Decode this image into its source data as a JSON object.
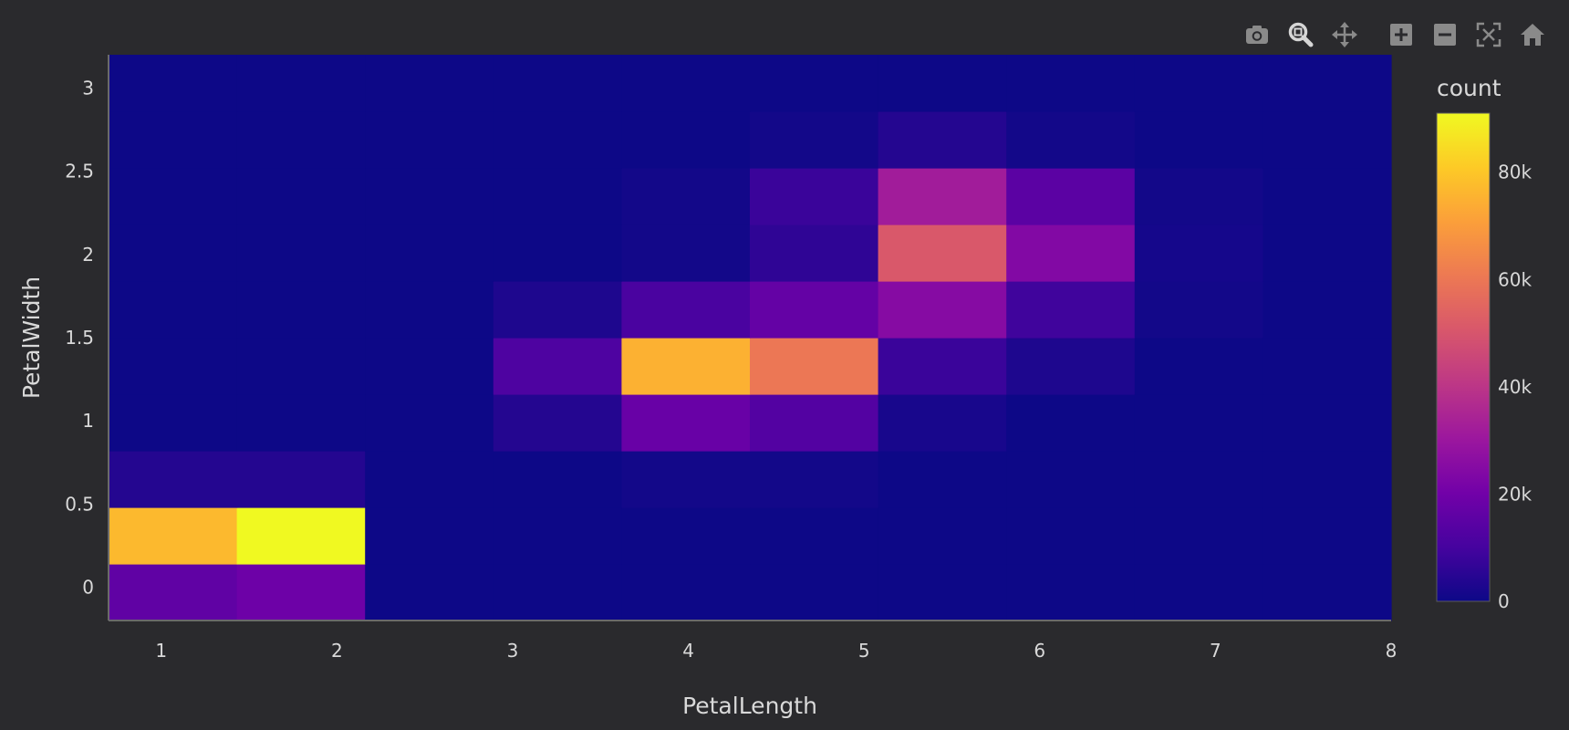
{
  "toolbar": {
    "icons": [
      "camera-icon",
      "zoom-icon",
      "pan-icon",
      "zoom-in-icon",
      "zoom-out-icon",
      "autoscale-icon",
      "home-icon"
    ],
    "active": "zoom-icon"
  },
  "colors": {
    "background": "#2a2a2d",
    "text": "#d9d9d9",
    "colorscale": [
      "#0d0887",
      "#46039f",
      "#7201a8",
      "#9c179e",
      "#bd3786",
      "#d8576b",
      "#ed7953",
      "#fb9f3a",
      "#fdca26",
      "#f0f921"
    ]
  },
  "chart_data": {
    "type": "heatmap",
    "title": "",
    "xlabel": "PetalLength",
    "ylabel": "PetalWidth",
    "colorbar_title": "count",
    "xlim": [
      0.7,
      8
    ],
    "ylim": [
      -0.2,
      3.2
    ],
    "x_ticks": [
      "1",
      "2",
      "3",
      "4",
      "5",
      "6",
      "7",
      "8"
    ],
    "y_ticks": [
      "0",
      "0.5",
      "1",
      "1.5",
      "2",
      "2.5",
      "3"
    ],
    "colorbar_ticks": [
      "0",
      "20k",
      "40k",
      "60k",
      "80k"
    ],
    "zmax": 91000,
    "x_bin_edges": [
      0.7,
      1.43,
      2.16,
      2.89,
      3.62,
      4.35,
      5.08,
      5.81,
      6.54,
      7.27,
      8.0
    ],
    "y_bin_edges": [
      -0.2,
      0.14,
      0.48,
      0.82,
      1.16,
      1.5,
      1.84,
      2.18,
      2.52,
      2.86,
      3.2
    ],
    "z": [
      [
        16000,
        19000,
        0,
        0,
        0,
        0,
        0,
        0,
        0,
        0
      ],
      [
        77000,
        91000,
        0,
        0,
        0,
        0,
        0,
        0,
        0,
        0
      ],
      [
        4000,
        4000,
        0,
        0,
        1000,
        1000,
        0,
        0,
        0,
        0
      ],
      [
        0,
        0,
        0,
        4000,
        18000,
        13000,
        2000,
        0,
        0,
        0
      ],
      [
        0,
        0,
        0,
        12000,
        75000,
        60000,
        8000,
        3000,
        0,
        0
      ],
      [
        0,
        0,
        0,
        3000,
        11000,
        17000,
        25000,
        9000,
        1000,
        0
      ],
      [
        0,
        0,
        0,
        0,
        1000,
        6000,
        51000,
        24000,
        1500,
        0
      ],
      [
        0,
        0,
        0,
        0,
        1000,
        8000,
        32000,
        15000,
        1000,
        0
      ],
      [
        0,
        0,
        0,
        0,
        0,
        1000,
        4000,
        1000,
        0,
        0
      ],
      [
        0,
        0,
        0,
        0,
        0,
        0,
        0,
        0,
        0,
        0
      ]
    ]
  }
}
